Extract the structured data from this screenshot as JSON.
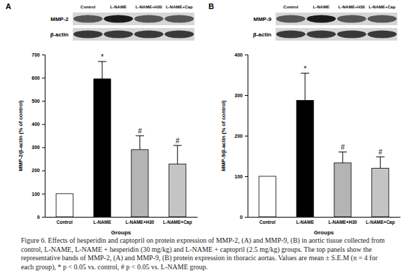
{
  "chart_data": [
    {
      "type": "bar",
      "title": "A",
      "categories": [
        "Control",
        "L-NAME",
        "L-NAME+H30",
        "L-NAME+Cap"
      ],
      "values": [
        100,
        595,
        290,
        228
      ],
      "errors": [
        0,
        75,
        60,
        80
      ],
      "significance": [
        null,
        "*",
        "#",
        "#"
      ],
      "colors": [
        "#ffffff",
        "#000000",
        "#b4b4b4",
        "#c4c4c4"
      ],
      "x_label": "Groups",
      "y_label": "MMP-2/β-actin (% of control)",
      "ylim": [
        0,
        700
      ],
      "yticks": [
        0,
        100,
        200,
        300,
        400,
        500,
        600,
        700
      ],
      "grid": false,
      "annotations": {
        "lanes": [
          "Control",
          "L-NAME",
          "L-NAME+H30",
          "L-NAME+Cap"
        ],
        "rows": [
          "MMP-2",
          "β-actin"
        ]
      }
    },
    {
      "type": "bar",
      "title": "B",
      "categories": [
        "Control",
        "L-NAME",
        "L-NAME+H30",
        "L-NAME+Cap"
      ],
      "values": [
        100,
        287,
        133,
        120
      ],
      "errors": [
        0,
        67,
        27,
        28
      ],
      "significance": [
        null,
        "*",
        "#",
        "#"
      ],
      "colors": [
        "#ffffff",
        "#000000",
        "#b4b4b4",
        "#c4c4c4"
      ],
      "x_label": "Groups",
      "y_label": "MMP-9/β-actin (% of control)",
      "ylim": [
        0,
        400
      ],
      "yticks": [
        0,
        100,
        200,
        300,
        400
      ],
      "grid": false,
      "annotations": {
        "lanes": [
          "Control",
          "L-NAME",
          "L-NAME+H30",
          "L-NAME+Cap"
        ],
        "rows": [
          "MMP-9",
          "β-actin"
        ]
      }
    }
  ],
  "caption": "Figure 6. Effects of hesperidin and captopril on protein expression of MMP-2, (A) and MMP-9, (B) in aortic tissue collected from control, L-NAME, L-NAME + hesperidin (30 mg/kg) and L-NAME + captopril (2.5 mg/kg) groups. The top panels show the representative bands of MMP-2, (A) and MMP-9, (B) protein expression in thoracic aortas. Values are mean ± S.E.M (n = 4 for each group), * p < 0.05 vs. control, # p < 0.05 vs. L-NAME group."
}
